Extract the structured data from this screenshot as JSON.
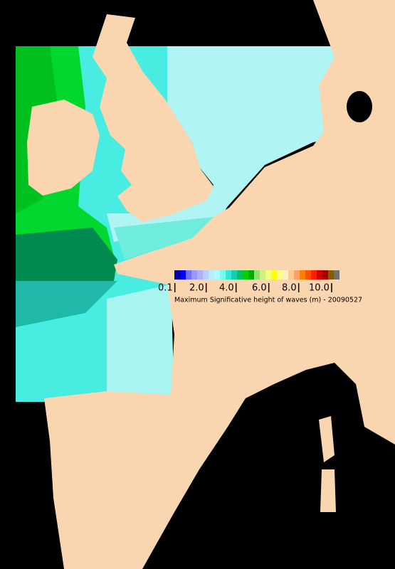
{
  "legend": {
    "colors": [
      "#0000a0",
      "#0000ff",
      "#7070ff",
      "#9898ff",
      "#b0b0ff",
      "#b8d0ff",
      "#b8ecff",
      "#a8ffff",
      "#70fff0",
      "#30e8d8",
      "#10d0b0",
      "#00c060",
      "#00d000",
      "#00a800",
      "#90e070",
      "#d0f080",
      "#f0ff80",
      "#ffff00",
      "#ffff90",
      "#fff0c0",
      "#ffc890",
      "#ffa060",
      "#ff8000",
      "#ff5000",
      "#ff2000",
      "#d00000",
      "#a00000",
      "#806000",
      "#707070"
    ],
    "ticks": [
      "0.1",
      "2.0",
      "4.0",
      "6.0",
      "8.0",
      "10.0"
    ],
    "caption": "Maximum Significative height of waves (m) - 20090527"
  }
}
